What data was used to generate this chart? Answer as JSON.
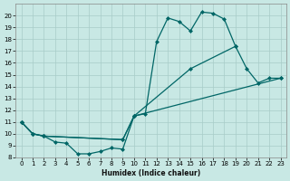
{
  "bg_color": "#c8e8e4",
  "line_color": "#006666",
  "grid_color": "#a8ccc8",
  "xlabel": "Humidex (Indice chaleur)",
  "xlim": [
    -0.5,
    23.5
  ],
  "ylim": [
    8,
    21
  ],
  "yticks": [
    8,
    9,
    10,
    11,
    12,
    13,
    14,
    15,
    16,
    17,
    18,
    19,
    20
  ],
  "xticks": [
    0,
    1,
    2,
    3,
    4,
    5,
    6,
    7,
    8,
    9,
    10,
    11,
    12,
    13,
    14,
    15,
    16,
    17,
    18,
    19,
    20,
    21,
    22,
    23
  ],
  "curve1_x": [
    0,
    1,
    2,
    3,
    4,
    5,
    6,
    7,
    8,
    9,
    10,
    11,
    12,
    13,
    14,
    15,
    16,
    17,
    18,
    19
  ],
  "curve1_y": [
    11,
    10,
    9.8,
    9.3,
    9.2,
    8.3,
    8.3,
    8.5,
    8.8,
    8.7,
    11.5,
    11.7,
    17.8,
    19.8,
    19.5,
    18.7,
    20.3,
    20.2,
    19.7,
    17.4
  ],
  "curve2_x": [
    0,
    1,
    2,
    9,
    10,
    15,
    19,
    20,
    21,
    22,
    23
  ],
  "curve2_y": [
    11,
    10,
    9.8,
    9.5,
    11.5,
    15.5,
    17.4,
    15.5,
    14.3,
    14.7,
    14.7
  ],
  "curve3_x": [
    0,
    1,
    2,
    9,
    10,
    23
  ],
  "curve3_y": [
    11,
    10,
    9.8,
    9.5,
    11.5,
    14.7
  ]
}
